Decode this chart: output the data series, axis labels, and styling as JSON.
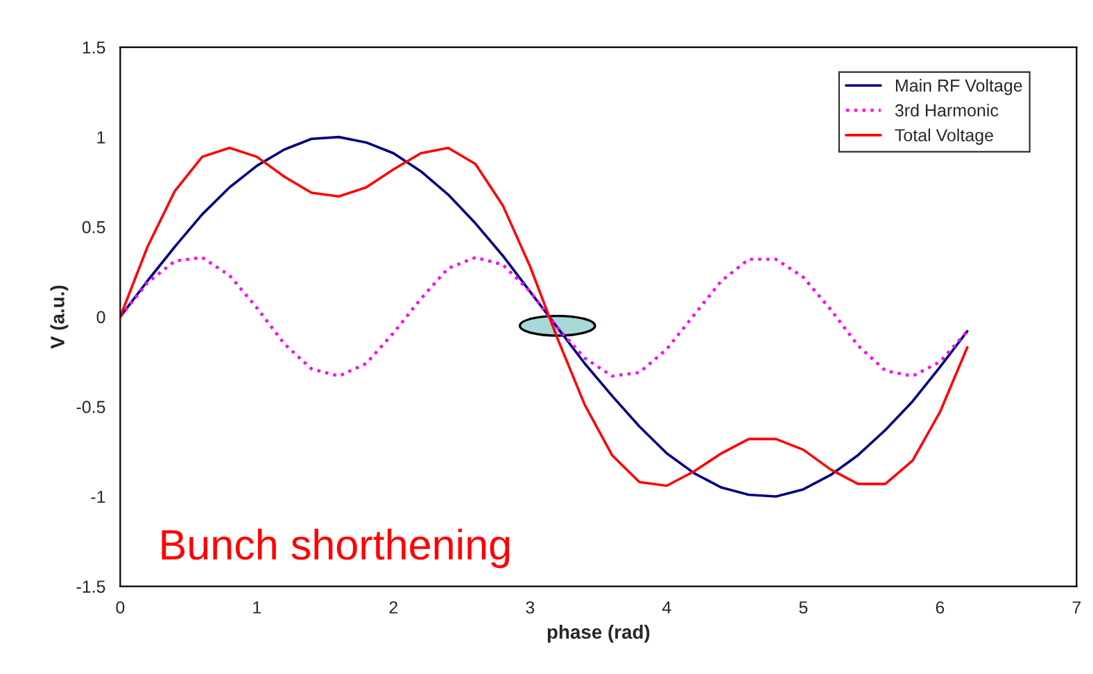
{
  "chart_data": {
    "type": "line",
    "xlabel": "phase (rad)",
    "ylabel": "V (a.u.)",
    "x": [
      0,
      0.2,
      0.4,
      0.6,
      0.8,
      1.0,
      1.2,
      1.4,
      1.6,
      1.8,
      2.0,
      2.2,
      2.4,
      2.6,
      2.8,
      3.0,
      3.2,
      3.4,
      3.6,
      3.8,
      4.0,
      4.2,
      4.4,
      4.6,
      4.8,
      5.0,
      5.2,
      5.4,
      5.6,
      5.8,
      6.0,
      6.2
    ],
    "series": [
      {
        "name": "Main RF Voltage",
        "color": "#000080",
        "line_style": "solid",
        "values": [
          0,
          0.2,
          0.39,
          0.57,
          0.72,
          0.84,
          0.93,
          0.99,
          1.0,
          0.97,
          0.91,
          0.81,
          0.68,
          0.52,
          0.34,
          0.14,
          -0.06,
          -0.26,
          -0.44,
          -0.61,
          -0.76,
          -0.87,
          -0.95,
          -0.99,
          -1.0,
          -0.96,
          -0.88,
          -0.77,
          -0.63,
          -0.47,
          -0.28,
          -0.08
        ]
      },
      {
        "name": "3rd Harmonic",
        "color": "#ff00ff",
        "line_style": "dotted",
        "values": [
          0,
          0.19,
          0.31,
          0.33,
          0.23,
          0.05,
          -0.15,
          -0.29,
          -0.33,
          -0.26,
          -0.09,
          0.1,
          0.27,
          0.33,
          0.29,
          0.14,
          -0.06,
          -0.23,
          -0.33,
          -0.31,
          -0.18,
          0.01,
          0.2,
          0.32,
          0.32,
          0.22,
          0.04,
          -0.16,
          -0.3,
          -0.33,
          -0.25,
          -0.08
        ]
      },
      {
        "name": "Total Voltage",
        "color": "#ff0000",
        "line_style": "solid",
        "values": [
          0,
          0.39,
          0.7,
          0.89,
          0.94,
          0.89,
          0.78,
          0.69,
          0.67,
          0.72,
          0.82,
          0.91,
          0.94,
          0.85,
          0.62,
          0.28,
          -0.12,
          -0.49,
          -0.77,
          -0.92,
          -0.94,
          -0.86,
          -0.76,
          -0.68,
          -0.68,
          -0.74,
          -0.85,
          -0.93,
          -0.93,
          -0.8,
          -0.53,
          -0.17
        ]
      }
    ],
    "xlim": [
      0,
      7
    ],
    "xticks": [
      0,
      1,
      2,
      3,
      4,
      5,
      6,
      7
    ],
    "ylim": [
      -1.5,
      1.5
    ],
    "yticks": [
      -1.5,
      -1,
      -0.5,
      0,
      0.5,
      1,
      1.5
    ],
    "grid": false,
    "legend": "top right",
    "annotations": [
      "Bunch shorthening"
    ]
  }
}
